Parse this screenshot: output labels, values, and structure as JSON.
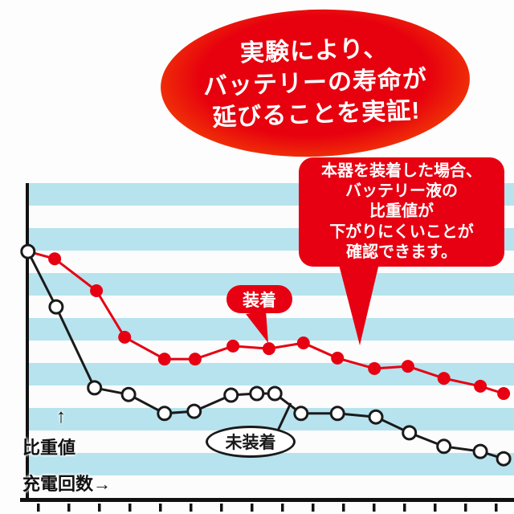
{
  "colors": {
    "accent_red": "#e60012",
    "bubble_rim_orange": "#fb6e00",
    "stripe_blue": "#b6e3ee",
    "line_black": "#1a1a1a",
    "background": "#fdfdfd"
  },
  "bubble": {
    "lines": [
      "実験により、",
      "バッテリーの寿命が",
      "延びることを実証!"
    ]
  },
  "callout": {
    "lines": [
      "本器を装着した場合、",
      "バッテリー液の",
      "比重値が",
      "下がりにくいことが",
      "確認できます。"
    ]
  },
  "labels": {
    "equipped": "装着",
    "not_equipped": "未装着",
    "y_axis_arrow": "↑",
    "y_axis": "比重値",
    "x_axis": "充電回数→"
  },
  "chart_data": {
    "type": "line",
    "title": "実験により、バッテリーの寿命が延びることを実証!",
    "xlabel": "充電回数",
    "ylabel": "比重値",
    "xlim": [
      0,
      100
    ],
    "ylim": [
      0,
      100
    ],
    "x_tick_count": 16,
    "grid": "horizontal light-blue stripes",
    "legend_position": "inline labels on chart",
    "axis_note": "axes have no numeric tick labels; values estimated on relative 0-100 scale",
    "series": [
      {
        "name": "装着",
        "color": "#e60012",
        "marker": "filled-circle",
        "points": [
          [
            0.3,
            78.4
          ],
          [
            5.8,
            76.1
          ],
          [
            14.4,
            66.0
          ],
          [
            20.2,
            51.3
          ],
          [
            28.4,
            44.4
          ],
          [
            34.7,
            44.4
          ],
          [
            42.5,
            48.5
          ],
          [
            49.9,
            47.7
          ],
          [
            57.0,
            49.5
          ],
          [
            64.0,
            44.7
          ],
          [
            71.6,
            41.4
          ],
          [
            78.5,
            42.1
          ],
          [
            85.9,
            38.3
          ],
          [
            93.4,
            35.8
          ],
          [
            98.2,
            33.5
          ]
        ]
      },
      {
        "name": "未装着",
        "color": "#1a1a1a",
        "marker": "open-circle",
        "points": [
          [
            0.3,
            78.4
          ],
          [
            6.1,
            60.9
          ],
          [
            14.0,
            35.3
          ],
          [
            21.0,
            33.2
          ],
          [
            28.4,
            27.2
          ],
          [
            34.5,
            27.9
          ],
          [
            42.1,
            33.0
          ],
          [
            47.4,
            33.5
          ],
          [
            51.1,
            33.5
          ],
          [
            56.5,
            27.2
          ],
          [
            64.0,
            27.2
          ],
          [
            71.9,
            26.1
          ],
          [
            78.8,
            21.1
          ],
          [
            85.9,
            16.8
          ],
          [
            93.4,
            15.2
          ],
          [
            98.2,
            12.9
          ]
        ]
      }
    ]
  }
}
